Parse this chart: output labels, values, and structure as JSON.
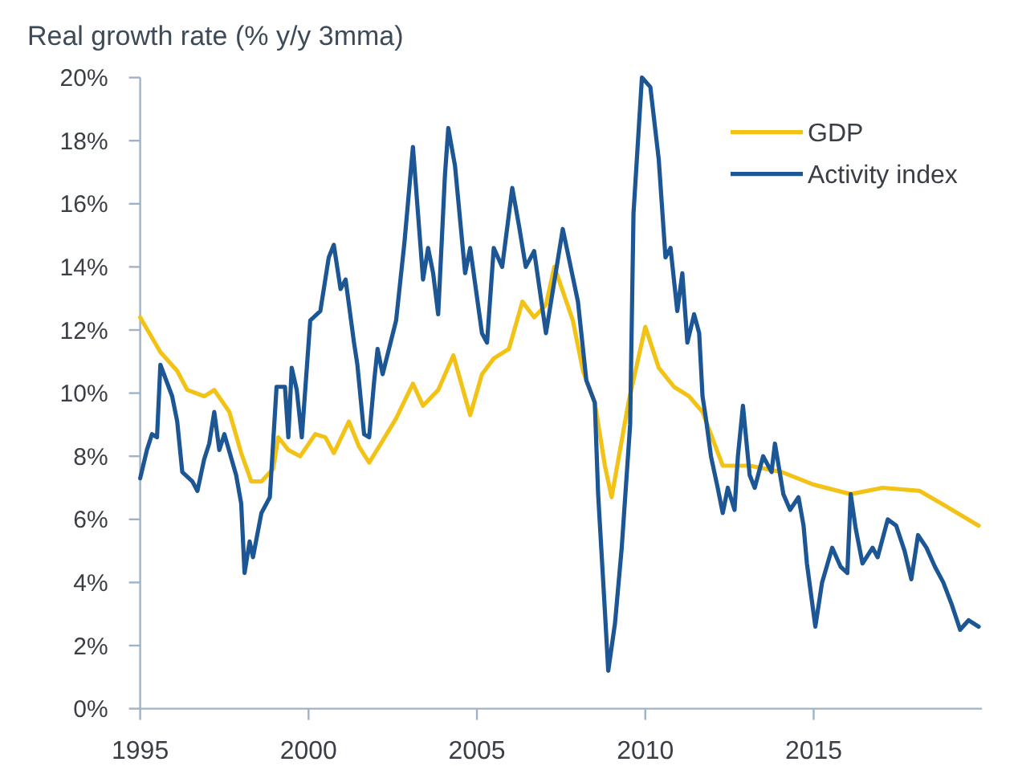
{
  "chart_data": {
    "type": "line",
    "title": "Real growth rate (% y/y 3mma)",
    "xlim": [
      1995,
      2020
    ],
    "xticks": [
      1995,
      2000,
      2005,
      2010,
      2015
    ],
    "ylim": [
      0,
      20
    ],
    "yticks": [
      {
        "value": 0,
        "label": "0%"
      },
      {
        "value": 2,
        "label": "2%"
      },
      {
        "value": 4,
        "label": "4%"
      },
      {
        "value": 6,
        "label": "6%"
      },
      {
        "value": 8,
        "label": "8%"
      },
      {
        "value": 10,
        "label": "10%"
      },
      {
        "value": 12,
        "label": "12%"
      },
      {
        "value": 14,
        "label": "14%"
      },
      {
        "value": 16,
        "label": "16%"
      },
      {
        "value": 18,
        "label": "18%"
      },
      {
        "value": 20,
        "label": "20%"
      }
    ],
    "legend": "top right",
    "series": [
      {
        "name": "GDP",
        "color": "#f2c316",
        "x": [
          1995.0,
          1995.6,
          1996.1,
          1996.4,
          1996.9,
          1997.2,
          1997.65,
          1998.0,
          1998.3,
          1998.6,
          1998.95,
          1999.1,
          1999.4,
          1999.75,
          2000.2,
          2000.5,
          2000.75,
          2001.2,
          2001.5,
          2001.8,
          2002.15,
          2002.6,
          2003.1,
          2003.4,
          2003.85,
          2004.3,
          2004.8,
          2005.15,
          2005.5,
          2005.95,
          2006.35,
          2006.7,
          2007.05,
          2007.3,
          2007.85,
          2008.15,
          2008.5,
          2008.8,
          2009.0,
          2009.5,
          2010.0,
          2010.4,
          2010.85,
          2011.3,
          2011.7,
          2012.3,
          2013.1,
          2014.05,
          2015.0,
          2016.1,
          2017.05,
          2018.15,
          2018.8,
          2019.9
        ],
        "values": [
          12.4,
          11.3,
          10.7,
          10.1,
          9.9,
          10.1,
          9.4,
          8.1,
          7.2,
          7.2,
          7.6,
          8.6,
          8.2,
          8.0,
          8.7,
          8.6,
          8.1,
          9.1,
          8.3,
          7.8,
          8.4,
          9.2,
          10.3,
          9.6,
          10.1,
          11.2,
          9.3,
          10.6,
          11.1,
          11.4,
          12.9,
          12.4,
          12.8,
          14.0,
          12.3,
          10.7,
          9.7,
          7.7,
          6.7,
          9.7,
          12.1,
          10.8,
          10.2,
          9.9,
          9.4,
          7.7,
          7.7,
          7.5,
          7.1,
          6.8,
          7.0,
          6.9,
          6.5,
          5.8
        ]
      },
      {
        "name": "Activity index",
        "color": "#1c5694",
        "x": [
          1995.0,
          1995.2,
          1995.35,
          1995.5,
          1995.6,
          1995.95,
          1996.1,
          1996.25,
          1996.55,
          1996.7,
          1996.9,
          1997.05,
          1997.2,
          1997.35,
          1997.5,
          1997.85,
          1998.0,
          1998.1,
          1998.25,
          1998.35,
          1998.6,
          1998.85,
          1999.05,
          1999.3,
          1999.4,
          1999.5,
          1999.65,
          1999.8,
          2000.05,
          2000.35,
          2000.6,
          2000.75,
          2000.95,
          2001.1,
          2001.35,
          2001.45,
          2001.65,
          2001.8,
          2001.95,
          2002.05,
          2002.2,
          2002.6,
          2002.85,
          2003.1,
          2003.25,
          2003.4,
          2003.55,
          2003.7,
          2003.85,
          2004.05,
          2004.15,
          2004.35,
          2004.65,
          2004.8,
          2005.15,
          2005.3,
          2005.5,
          2005.75,
          2006.05,
          2006.25,
          2006.45,
          2006.7,
          2007.05,
          2007.55,
          2008.0,
          2008.25,
          2008.5,
          2008.6,
          2008.8,
          2008.9,
          2009.1,
          2009.3,
          2009.55,
          2009.65,
          2009.9,
          2010.15,
          2010.4,
          2010.6,
          2010.75,
          2010.95,
          2011.1,
          2011.25,
          2011.45,
          2011.6,
          2011.7,
          2011.8,
          2011.95,
          2012.15,
          2012.3,
          2012.45,
          2012.65,
          2012.75,
          2012.9,
          2013.1,
          2013.25,
          2013.5,
          2013.75,
          2013.85,
          2014.1,
          2014.3,
          2014.55,
          2014.7,
          2014.8,
          2015.05,
          2015.25,
          2015.55,
          2015.8,
          2016.0,
          2016.1,
          2016.25,
          2016.45,
          2016.75,
          2016.9,
          2017.2,
          2017.45,
          2017.7,
          2017.9,
          2018.1,
          2018.35,
          2018.6,
          2018.85,
          2019.1,
          2019.35,
          2019.6,
          2019.9
        ],
        "values": [
          7.3,
          8.2,
          8.7,
          8.6,
          10.9,
          9.9,
          9.1,
          7.5,
          7.2,
          6.9,
          7.9,
          8.4,
          9.4,
          8.2,
          8.7,
          7.4,
          6.5,
          4.3,
          5.3,
          4.8,
          6.2,
          6.7,
          10.2,
          10.2,
          8.6,
          10.8,
          10.1,
          8.6,
          12.3,
          12.6,
          14.3,
          14.7,
          13.3,
          13.6,
          11.6,
          10.9,
          8.7,
          8.6,
          10.4,
          11.4,
          10.6,
          12.3,
          14.8,
          17.8,
          15.7,
          13.6,
          14.6,
          13.8,
          12.5,
          16.9,
          18.4,
          17.2,
          13.8,
          14.6,
          11.9,
          11.6,
          14.6,
          14.0,
          16.5,
          15.3,
          14.0,
          14.5,
          11.9,
          15.2,
          12.9,
          10.4,
          9.7,
          6.8,
          3.1,
          1.2,
          2.7,
          5.1,
          9.0,
          15.7,
          20.0,
          19.7,
          17.4,
          14.3,
          14.6,
          12.6,
          13.8,
          11.6,
          12.5,
          11.9,
          9.9,
          9.2,
          8.0,
          7.0,
          6.2,
          7.0,
          6.3,
          8.0,
          9.6,
          7.4,
          7.0,
          8.0,
          7.5,
          8.4,
          6.8,
          6.3,
          6.7,
          5.8,
          4.6,
          2.6,
          4.0,
          5.1,
          4.5,
          4.3,
          6.8,
          5.7,
          4.6,
          5.1,
          4.8,
          6.0,
          5.8,
          5.0,
          4.1,
          5.5,
          5.1,
          4.5,
          4.0,
          3.3,
          2.5,
          2.8,
          2.6
        ]
      }
    ]
  }
}
